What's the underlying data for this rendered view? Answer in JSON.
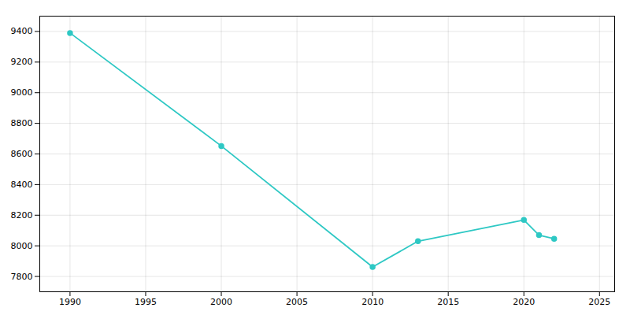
{
  "chart_data": {
    "type": "line",
    "x": [
      1990,
      2000,
      2010,
      2013,
      2020,
      2021,
      2022
    ],
    "values": [
      9390,
      8652,
      7862,
      8030,
      8169,
      8070,
      8046
    ],
    "color": "#2ec8c4",
    "marker": "circle",
    "xlim": [
      1988,
      2026
    ],
    "ylim": [
      7700,
      9500
    ],
    "xticks": [
      1990,
      1995,
      2000,
      2005,
      2010,
      2015,
      2020,
      2025
    ],
    "yticks": [
      7800,
      8000,
      8200,
      8400,
      8600,
      8800,
      9000,
      9200,
      9400
    ],
    "grid": true
  }
}
